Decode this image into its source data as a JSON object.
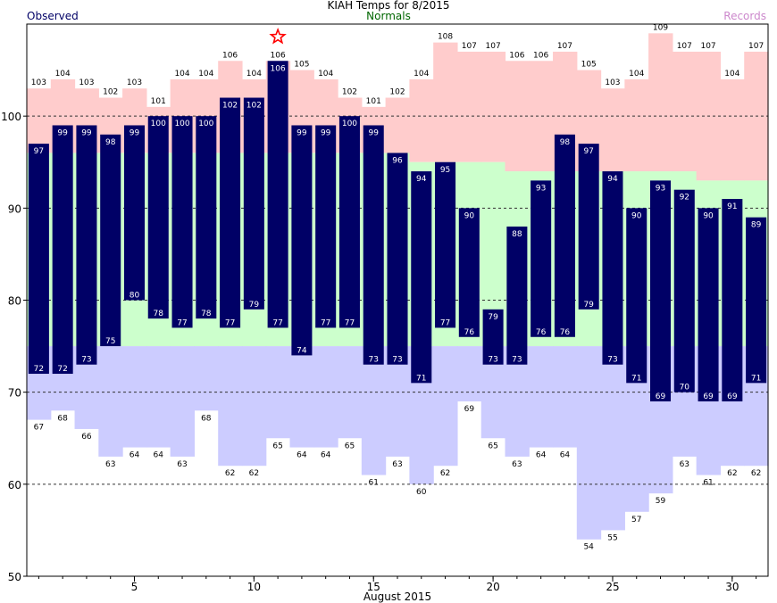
{
  "title": "KIAH Temps for 8/2015",
  "legend": {
    "observed": "Observed",
    "normals": "Normals",
    "records": "Records"
  },
  "colors": {
    "observed_bar": "#000066",
    "normal_band": "#ccffcc",
    "record_high_band": "#ffcccc",
    "record_low_band": "#ccccff",
    "observed_label": "#000066",
    "normals_label": "#006600",
    "records_label": "#cc88cc",
    "star": "#ff0000"
  },
  "chart_data": {
    "type": "bar",
    "title": "KIAH Temps for 8/2015",
    "xlabel": "August 2015",
    "ylabel": "",
    "xlim": [
      0.5,
      31.5
    ],
    "ylim": [
      50,
      110
    ],
    "x_ticks": [
      5,
      10,
      15,
      20,
      25,
      30
    ],
    "y_ticks": [
      50,
      60,
      70,
      80,
      90,
      100
    ],
    "gridlines_dashed": [
      60,
      70,
      80,
      90,
      100
    ],
    "days": [
      1,
      2,
      3,
      4,
      5,
      6,
      7,
      8,
      9,
      10,
      11,
      12,
      13,
      14,
      15,
      16,
      17,
      18,
      19,
      20,
      21,
      22,
      23,
      24,
      25,
      26,
      27,
      28,
      29,
      30,
      31
    ],
    "series": [
      {
        "name": "Observed High",
        "values": [
          97,
          99,
          99,
          98,
          99,
          100,
          100,
          100,
          102,
          102,
          106,
          99,
          99,
          100,
          99,
          96,
          94,
          95,
          90,
          79,
          88,
          93,
          98,
          97,
          94,
          90,
          93,
          92,
          90,
          91,
          89
        ]
      },
      {
        "name": "Observed Low",
        "values": [
          72,
          72,
          73,
          75,
          80,
          78,
          77,
          78,
          77,
          79,
          77,
          74,
          77,
          77,
          73,
          73,
          71,
          77,
          76,
          73,
          73,
          76,
          76,
          79,
          73,
          71,
          69,
          70,
          69,
          69,
          71
        ]
      },
      {
        "name": "Normal High",
        "values": [
          96,
          96,
          96,
          96,
          96,
          96,
          96,
          96,
          96,
          96,
          96,
          96,
          96,
          96,
          96,
          96,
          95,
          95,
          95,
          95,
          94,
          94,
          94,
          94,
          94,
          94,
          94,
          94,
          93,
          93,
          93
        ]
      },
      {
        "name": "Normal Low",
        "values": [
          75,
          75,
          75,
          75,
          75,
          75,
          75,
          75,
          75,
          75,
          75,
          75,
          75,
          75,
          75,
          75,
          75,
          75,
          75,
          75,
          75,
          75,
          75,
          75,
          75,
          75,
          75,
          75,
          75,
          75,
          75
        ]
      },
      {
        "name": "Record High",
        "values": [
          103,
          104,
          103,
          102,
          103,
          101,
          104,
          104,
          106,
          104,
          106,
          105,
          104,
          102,
          101,
          102,
          104,
          108,
          107,
          107,
          106,
          106,
          107,
          105,
          103,
          104,
          109,
          107,
          107,
          104,
          107
        ]
      },
      {
        "name": "Record Low",
        "values": [
          67,
          68,
          66,
          63,
          64,
          64,
          63,
          68,
          62,
          62,
          65,
          64,
          64,
          65,
          61,
          63,
          60,
          62,
          69,
          65,
          63,
          64,
          64,
          54,
          55,
          57,
          59,
          63,
          61,
          62,
          62
        ]
      }
    ],
    "record_set_days": [
      11
    ]
  }
}
